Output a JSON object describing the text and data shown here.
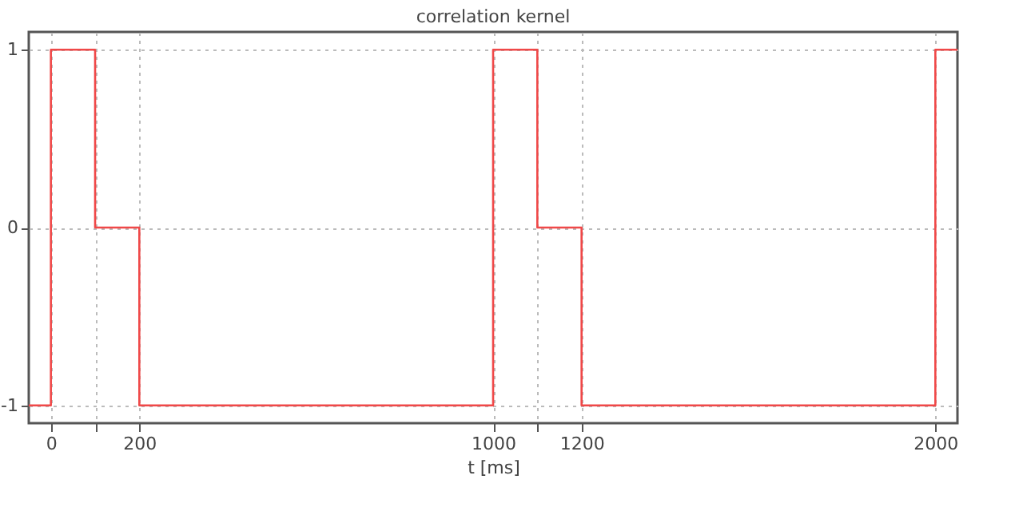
{
  "chart_data": {
    "type": "step",
    "title": "correlation kernel",
    "xlabel": "t [ms]",
    "x": [
      -50,
      0,
      100,
      200,
      1000,
      1100,
      1200,
      2000,
      2050
    ],
    "series": [
      {
        "color": "#f04848",
        "values": [
          -1,
          1,
          0,
          -1,
          1,
          0,
          -1,
          1,
          1
        ]
      }
    ],
    "xlim": [
      -50,
      2050
    ],
    "xticks": [
      0,
      {
        "value": 100,
        "label": null
      },
      200,
      1000,
      {
        "value": 1100,
        "label": null
      },
      1200,
      2000
    ],
    "ylim": [
      -1.1,
      1.1
    ],
    "yticks": [
      -1,
      0,
      1
    ],
    "grid": true,
    "line_style": "solid",
    "marker": "none"
  }
}
